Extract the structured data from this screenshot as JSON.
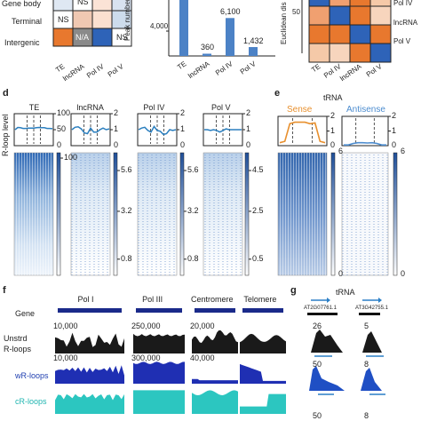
{
  "panel_a": {
    "rows": [
      "Gene body",
      "Terminal",
      "Intergenic"
    ],
    "cols": [
      "TE",
      "lncRNA",
      "Pol IV",
      "Pol V"
    ],
    "cells": [
      [
        "",
        "NS",
        "",
        ""
      ],
      [
        "NS",
        "",
        "",
        ""
      ],
      [
        "",
        "N/A",
        "",
        "NS"
      ]
    ]
  },
  "panel_b": {
    "ylabel": "Peak number",
    "ytick": "4,000"
  },
  "panel_c": {
    "ylabel": "Euclidean dis",
    "colorbar_tick": "50",
    "row_labels": [
      "Pol IV",
      "lncRNA",
      "Pol V"
    ],
    "col_labels": [
      "TE",
      "Pol IV",
      "lncRNA",
      "Pol V"
    ]
  },
  "panel_d": {
    "letter": "d",
    "ylabel": "R-loop level",
    "titles": [
      "TE",
      "lncRNA",
      "Pol IV",
      "Pol V"
    ]
  },
  "panel_e": {
    "letter": "e",
    "title": "tRNA",
    "sense_label": "Sense",
    "antisense_label": "Antisense"
  },
  "panel_f": {
    "letter": "f",
    "regions": [
      "Pol I",
      "Pol III",
      "Centromere",
      "Telomere"
    ],
    "track_labels": [
      "Gene",
      "Unstrd",
      "R-loops",
      "wR-loops",
      "cR-loops"
    ],
    "scales": {
      "unstrd": [
        "10,000",
        "250,000",
        "20,000"
      ],
      "wr": [
        "10,000",
        "300,000",
        "40,000"
      ]
    }
  },
  "panel_g": {
    "letter": "g",
    "title": "tRNA",
    "genes": [
      "AT2G07761.1",
      "AT3G42755.1"
    ],
    "scales": {
      "unstrd": [
        "26",
        "5"
      ],
      "wr": [
        "50",
        "8"
      ],
      "cr": [
        "50",
        "8"
      ]
    }
  },
  "chart_data": [
    {
      "type": "heatmap",
      "panel": "a",
      "rows": [
        "Gene body",
        "Terminal",
        "Intergenic"
      ],
      "columns": [
        "TE",
        "lncRNA",
        "Pol IV",
        "Pol V"
      ],
      "cell_colors": [
        [
          "#dfe8f3",
          "#ffffff",
          "#fbe3d6",
          "#d8e2f0"
        ],
        [
          "#ffffff",
          "#f0c8b2",
          "#fbe0d0",
          "#cddcec"
        ],
        [
          "#e8782e",
          "#8a8a8a",
          "#2e63b8",
          "#ffffff"
        ]
      ],
      "cell_text": [
        [
          "",
          "NS",
          "",
          ""
        ],
        [
          "NS",
          "",
          "",
          ""
        ],
        [
          "",
          "N/A",
          "",
          "NS"
        ]
      ]
    },
    {
      "type": "bar",
      "panel": "b",
      "categories": [
        "TE",
        "lncRNA",
        "Pol IV",
        "Pol V"
      ],
      "values": [
        9000,
        360,
        6100,
        1432
      ],
      "data_labels": [
        "",
        "360",
        "6,100",
        "1,432"
      ],
      "ylabel": "Peak number",
      "ylim": [
        0,
        9000
      ],
      "yticks": [
        "4,000"
      ],
      "color": "#4c82c6"
    },
    {
      "type": "heatmap",
      "panel": "c",
      "rows": [
        "",
        "Pol IV",
        "lncRNA",
        "Pol V"
      ],
      "columns": [
        "TE",
        "Pol IV",
        "lncRNA",
        "Pol V"
      ],
      "cell_colors": [
        [
          "#2e63b8",
          "#f0a070",
          "#e8782e",
          "#f5c9a8"
        ],
        [
          "#f0a070",
          "#2e63b8",
          "#e8782e",
          "#f7d5bd"
        ],
        [
          "#e8782e",
          "#e8782e",
          "#2e63b8",
          "#e8782e"
        ],
        [
          "#f5c9a8",
          "#f7d5bd",
          "#e8782e",
          "#2e63b8"
        ]
      ],
      "colorbar_ticks": [
        "50"
      ]
    },
    {
      "type": "line",
      "panel": "d",
      "titles": [
        "TE",
        "lncRNA",
        "Pol IV",
        "Pol V"
      ],
      "ylabel": "R-loop level",
      "series": [
        {
          "ylim": [
            0,
            100
          ],
          "yticks": [
            "50",
            "100"
          ],
          "values": [
            50,
            57,
            56,
            54,
            54,
            55,
            55,
            55,
            56,
            57,
            56,
            56,
            54,
            54,
            53
          ]
        },
        {
          "ylim": [
            0,
            2
          ],
          "yticks": [
            "1",
            "2"
          ],
          "values": [
            1.0,
            1.15,
            1.18,
            1.05,
            0.8,
            0.75,
            1.1,
            0.85,
            0.85,
            1.0,
            1.1,
            1.0,
            1.05
          ]
        },
        {
          "ylim": [
            0,
            2
          ],
          "yticks": [
            "1",
            "2"
          ],
          "values": [
            1.0,
            1.1,
            1.15,
            0.95,
            0.85,
            1.2,
            0.95,
            0.9,
            0.7,
            0.75,
            1.0,
            0.95,
            1.0
          ]
        },
        {
          "ylim": [
            0,
            2
          ],
          "yticks": [
            "1",
            "2"
          ],
          "values": [
            1.0,
            1.0,
            0.95,
            1.0,
            0.95,
            0.85,
            0.95,
            1.05,
            1.0,
            1.0,
            1.0,
            1.0,
            1.0
          ]
        }
      ],
      "heatmap_colorbars": [
        [
          "100"
        ],
        [
          "5.6",
          "3.2",
          "0.8"
        ],
        [
          "5.6",
          "3.2",
          "0.8"
        ],
        [
          "4.5",
          "2.5",
          "0.5"
        ]
      ]
    },
    {
      "type": "line",
      "panel": "e",
      "title": "tRNA",
      "series": [
        {
          "name": "Sense",
          "ylim": [
            0,
            2
          ],
          "yticks": [
            "1",
            "2"
          ],
          "color": "#e8902e",
          "values": [
            0.2,
            0.3,
            1.5,
            1.6,
            1.6,
            1.6,
            1.5,
            1.55,
            0.3,
            0.2
          ]
        },
        {
          "name": "Antisense",
          "ylim": [
            0,
            2
          ],
          "yticks": [
            "1",
            "2"
          ],
          "color": "#4c8ccf",
          "values": [
            0.05,
            0.05,
            0.15,
            0.2,
            0.2,
            0.18,
            0.2,
            0.15,
            0.05,
            0.05
          ]
        }
      ],
      "heatmap_colorbars": [
        [
          "6",
          "0"
        ],
        [
          "6",
          "0"
        ]
      ]
    },
    {
      "type": "area",
      "panel": "f",
      "regions": [
        "Pol I",
        "Pol III",
        "Centromere",
        "Telomere"
      ],
      "tracks": [
        "Unstrd R-loops",
        "wR-loops",
        "cR-loops"
      ],
      "scales": {
        "Unstrd R-loops": [
          "10,000",
          "250,000",
          "20,000"
        ],
        "wR-loops": [
          "10,000",
          "300,000",
          "40,000"
        ]
      }
    },
    {
      "type": "area",
      "panel": "g",
      "title": "tRNA",
      "genes": [
        "AT2G07761.1",
        "AT3G42755.1"
      ],
      "scales": {
        "Unstrd R-loops": [
          "26",
          "5"
        ],
        "wR-loops": [
          "50",
          "8"
        ],
        "cR-loops": [
          "50",
          "8"
        ]
      }
    }
  ]
}
